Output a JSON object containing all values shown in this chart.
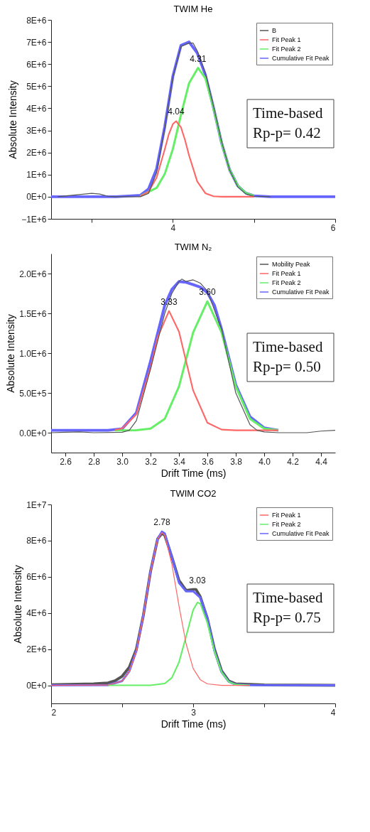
{
  "chart_data": [
    {
      "type": "line",
      "title": "TWIM He",
      "ylabel": "Absolute Intensity",
      "xlim": [
        2.5,
        6
      ],
      "ylim": [
        -1000000,
        8000000
      ],
      "xticks": [
        {
          "value": 3,
          "label": null
        },
        4,
        {
          "value": 5,
          "label": null
        },
        6
      ],
      "yticks": [
        {
          "value": -1000000,
          "label": "−1E+6"
        },
        {
          "value": 0,
          "label": "0E+0"
        },
        {
          "value": 1000000,
          "label": "1E+6"
        },
        {
          "value": 2000000,
          "label": "2E+6"
        },
        {
          "value": 3000000,
          "label": "3E+6"
        },
        {
          "value": 4000000,
          "label": "4E+6"
        },
        {
          "value": 5000000,
          "label": "5E+6"
        },
        {
          "value": 6000000,
          "label": "6E+6"
        },
        {
          "value": 7000000,
          "label": "7E+6"
        },
        {
          "value": 8000000,
          "label": "8E+6"
        }
      ],
      "grid": false,
      "legend": "top right",
      "series": [
        {
          "name": "B",
          "color": "#555555",
          "x": [
            2.58,
            2.8,
            3.0,
            3.1,
            3.2,
            3.3,
            3.6,
            3.7,
            3.8,
            3.9,
            4.0,
            4.1,
            4.2,
            4.25,
            4.3,
            4.4,
            4.5,
            4.6,
            4.7,
            4.8,
            4.9,
            5.0,
            5.2
          ],
          "values": [
            0,
            80000,
            150000,
            120000,
            20000,
            0,
            0,
            150000,
            1100000,
            3100000,
            5400000,
            6800000,
            6950000,
            6950000,
            6600000,
            5600000,
            4100000,
            2500000,
            1200000,
            450000,
            130000,
            20000,
            0
          ]
        },
        {
          "name": "Fit Peak 1",
          "color": "#ff6666",
          "x": [
            3.6,
            3.7,
            3.8,
            3.9,
            3.95,
            4.0,
            4.04,
            4.1,
            4.15,
            4.2,
            4.3,
            4.4,
            4.5,
            4.6,
            5.0
          ],
          "values": [
            34000,
            220000,
            870000,
            2140000,
            2830000,
            3290000,
            3420000,
            3140000,
            2560000,
            1860000,
            690000,
            160000,
            23000,
            0,
            0
          ]
        },
        {
          "name": "Fit Peak 2",
          "color": "#66ee66",
          "x": [
            3.6,
            3.8,
            3.9,
            4.0,
            4.1,
            4.2,
            4.31,
            4.4,
            4.5,
            4.6,
            4.7,
            4.8,
            4.9,
            5.0
          ],
          "values": [
            32000,
            400000,
            1030000,
            2160000,
            3710000,
            5140000,
            5830000,
            5360000,
            4020000,
            2440000,
            1210000,
            490000,
            160000,
            40000
          ]
        },
        {
          "name": "Cumulative Fit Peak",
          "color": "#6666ff",
          "x": [
            2.5,
            3.3,
            3.6,
            3.7,
            3.8,
            3.9,
            4.0,
            4.1,
            4.2,
            4.3,
            4.4,
            4.5,
            4.6,
            4.7,
            4.8,
            4.9,
            5.0,
            5.2,
            6.0
          ],
          "values": [
            0,
            0,
            66000,
            350000,
            1270000,
            3170000,
            5450000,
            6850000,
            7000000,
            6500000,
            5520000,
            4040000,
            2440000,
            1210000,
            490000,
            160000,
            40000,
            0,
            0
          ]
        }
      ],
      "annotations": [
        {
          "text": "4.04",
          "x": 4.04,
          "y": 3420000
        },
        {
          "text": "4.31",
          "x": 4.31,
          "y": 5830000
        },
        "Time-based",
        "Rp-p= 0.42"
      ]
    },
    {
      "type": "line",
      "title": "TWIM N₂",
      "xlabel": "Drift Time (ms)",
      "ylabel": "Absolute Intensity",
      "xlim": [
        2.5,
        4.5
      ],
      "ylim": [
        -250000,
        2250000
      ],
      "xticks": [
        {
          "value": 2.6,
          "label": "2.6"
        },
        {
          "value": 2.8,
          "label": "2.8"
        },
        {
          "value": 3.0,
          "label": "3.0"
        },
        {
          "value": 3.2,
          "label": "3.2"
        },
        {
          "value": 3.4,
          "label": "3.4"
        },
        {
          "value": 3.6,
          "label": "3.6"
        },
        {
          "value": 3.8,
          "label": "3.8"
        },
        {
          "value": 4.0,
          "label": "4.0"
        },
        {
          "value": 4.2,
          "label": "4.2"
        },
        {
          "value": 4.4,
          "label": "4.4"
        }
      ],
      "yticks": [
        {
          "value": 0,
          "label": "0.0E+0"
        },
        {
          "value": 500000,
          "label": "5.0E+5"
        },
        {
          "value": 1000000,
          "label": "1.0E+6"
        },
        {
          "value": 1500000,
          "label": "1.5E+6"
        },
        {
          "value": 2000000,
          "label": "2.0E+6"
        }
      ],
      "grid": false,
      "legend": "top right",
      "series": [
        {
          "name": "Mobility Peak",
          "color": "#555555",
          "x": [
            2.5,
            2.6,
            2.7,
            2.8,
            3.0,
            3.05,
            3.1,
            3.2,
            3.3,
            3.35,
            3.4,
            3.42,
            3.45,
            3.5,
            3.55,
            3.6,
            3.7,
            3.8,
            3.9,
            3.95,
            4.0,
            4.1,
            4.3,
            4.4,
            4.5
          ],
          "values": [
            0,
            5000,
            10000,
            0,
            5000,
            30000,
            150000,
            800000,
            1500000,
            1750000,
            1900000,
            1930000,
            1900000,
            1920000,
            1880000,
            1780000,
            1300000,
            500000,
            100000,
            30000,
            10000,
            0,
            0,
            20000,
            30000
          ]
        },
        {
          "name": "Fit Peak 1",
          "color": "#ff6666",
          "x": [
            2.95,
            3.0,
            3.1,
            3.2,
            3.25,
            3.33,
            3.4,
            3.45,
            3.5,
            3.6,
            3.7,
            3.8,
            4.1
          ],
          "values": [
            36000,
            54000,
            230000,
            820000,
            1200000,
            1530000,
            1270000,
            900000,
            530000,
            125000,
            39000,
            30000,
            30000
          ]
        },
        {
          "name": "Fit Peak 2",
          "color": "#66ee66",
          "x": [
            2.95,
            3.1,
            3.2,
            3.3,
            3.4,
            3.5,
            3.6,
            3.7,
            3.8,
            3.9,
            4.0,
            4.1
          ],
          "values": [
            30000,
            32000,
            51000,
            174000,
            580000,
            1260000,
            1650000,
            1260000,
            580000,
            174000,
            51000,
            32000
          ]
        },
        {
          "name": "Cumulative Fit Peak",
          "color": "#6666ff",
          "x": [
            2.5,
            2.9,
            3.0,
            3.1,
            3.2,
            3.3,
            3.35,
            3.4,
            3.45,
            3.5,
            3.55,
            3.6,
            3.65,
            3.7,
            3.8,
            3.9,
            4.0,
            4.1
          ],
          "values": [
            30000,
            30000,
            50000,
            250000,
            900000,
            1600000,
            1800000,
            1900000,
            1890000,
            1860000,
            1830000,
            1760000,
            1600000,
            1300000,
            600000,
            200000,
            60000,
            30000
          ]
        }
      ],
      "annotations": [
        {
          "text": "3.33",
          "x": 3.33,
          "y": 1530000
        },
        {
          "text": "3.60",
          "x": 3.6,
          "y": 1650000
        },
        "Time-based",
        "Rp-p= 0.50"
      ]
    },
    {
      "type": "line",
      "title": "TWIM CO2",
      "xlabel": "Drift Time (ms)",
      "ylabel": "Absolute Intensity",
      "xlim": [
        2,
        4
      ],
      "ylim": [
        -1000000,
        10000000
      ],
      "xticks": [
        2,
        {
          "value": 2.5,
          "label": null
        },
        3,
        {
          "value": 3.5,
          "label": null
        },
        4
      ],
      "yticks": [
        {
          "value": 0,
          "label": "0E+0"
        },
        {
          "value": 2000000,
          "label": "2E+6"
        },
        {
          "value": 4000000,
          "label": "4E+6"
        },
        {
          "value": 6000000,
          "label": "6E+6"
        },
        {
          "value": 8000000,
          "label": "8E+6"
        },
        {
          "value": 10000000,
          "label": "1E+7"
        }
      ],
      "grid": false,
      "legend": "top right",
      "series": [
        {
          "color": "#555555",
          "x": [
            2.0,
            2.3,
            2.4,
            2.45,
            2.5,
            2.55,
            2.6,
            2.65,
            2.7,
            2.75,
            2.78,
            2.8,
            2.85,
            2.9,
            2.95,
            3.0,
            3.02,
            3.05,
            3.1,
            3.15,
            3.2,
            3.25,
            3.3,
            3.5,
            4.0
          ],
          "values": [
            30000,
            80000,
            130000,
            250000,
            500000,
            1000000,
            2000000,
            3900000,
            6300000,
            8100000,
            8400000,
            8300000,
            7100000,
            5800000,
            5250000,
            5300000,
            5300000,
            4900000,
            3700000,
            2000000,
            800000,
            250000,
            80000,
            20000,
            0
          ]
        },
        {
          "name": "Fit Peak 1",
          "color": "#ff6666",
          "x": [
            2.0,
            2.4,
            2.5,
            2.55,
            2.6,
            2.65,
            2.7,
            2.75,
            2.78,
            2.8,
            2.85,
            2.9,
            2.95,
            3.0,
            3.05,
            3.1,
            3.2,
            3.4
          ],
          "values": [
            0,
            13000,
            240000,
            770000,
            1900000,
            3900000,
            6300000,
            8100000,
            8440000,
            8300000,
            6700000,
            4400000,
            2300000,
            930000,
            310000,
            80000,
            0,
            0
          ]
        },
        {
          "name": "Fit Peak 2",
          "color": "#66ee66",
          "x": [
            2.4,
            2.7,
            2.8,
            2.85,
            2.9,
            2.95,
            3.0,
            3.03,
            3.05,
            3.1,
            3.15,
            3.2,
            3.25,
            3.3,
            3.4
          ],
          "values": [
            0,
            0,
            100000,
            420000,
            1270000,
            2700000,
            4170000,
            4580000,
            4520000,
            3450000,
            1870000,
            730000,
            200000,
            37000,
            0
          ]
        },
        {
          "name": "Cumulative Fit Peak",
          "color": "#6666ff",
          "x": [
            2.0,
            2.4,
            2.5,
            2.55,
            2.6,
            2.65,
            2.7,
            2.75,
            2.78,
            2.8,
            2.85,
            2.9,
            2.95,
            3.0,
            3.05,
            3.1,
            3.15,
            3.2,
            3.25,
            3.3,
            3.4,
            4.0
          ],
          "values": [
            0,
            13000,
            240000,
            770000,
            1900000,
            3900000,
            6300000,
            8100000,
            8500000,
            8400000,
            7100000,
            5670000,
            5200000,
            5200000,
            4850000,
            3700000,
            1900000,
            730000,
            200000,
            40000,
            10000,
            0
          ]
        }
      ],
      "annotations": [
        {
          "text": "2.78",
          "x": 2.78,
          "y": 8500000
        },
        {
          "text": "3.03",
          "x": 3.03,
          "y": 5300000
        },
        "Time-based",
        "Rp-p= 0.75"
      ]
    }
  ]
}
